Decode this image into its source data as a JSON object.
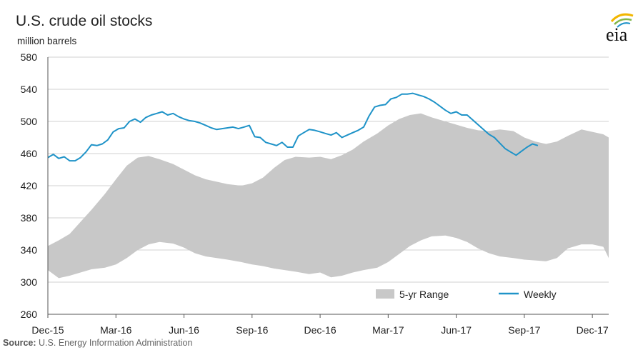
{
  "title": "U.S. crude oil stocks",
  "units": "million barrels",
  "source_label": "Source:",
  "source_text": "U.S. Energy Information Administration",
  "logo_text": "eia",
  "colors": {
    "range_fill": "#c8c8c8",
    "weekly_line": "#1f93c8",
    "grid": "#d0d0d0",
    "axis": "#555555",
    "logo_arcs": [
      "#f2b600",
      "#83b64a",
      "#1f93c8"
    ]
  },
  "chart_data": {
    "type": "area",
    "title": "U.S. crude oil stocks",
    "ylabel": "million barrels",
    "ylim": [
      260,
      580
    ],
    "yticks": [
      260,
      300,
      340,
      380,
      420,
      460,
      500,
      540,
      580
    ],
    "grid": true,
    "legend_placement": "bottom-center",
    "x_range": [
      2015.92,
      2017.98
    ],
    "xticks": [
      {
        "label": "Dec-15",
        "x": 2015.92
      },
      {
        "label": "Mar-16",
        "x": 2016.17
      },
      {
        "label": "Jun-16",
        "x": 2016.42
      },
      {
        "label": "Sep-16",
        "x": 2016.67
      },
      {
        "label": "Dec-16",
        "x": 2016.92
      },
      {
        "label": "Mar-17",
        "x": 2017.17
      },
      {
        "label": "Jun-17",
        "x": 2017.42
      },
      {
        "label": "Sep-17",
        "x": 2017.67
      },
      {
        "label": "Dec-17",
        "x": 2017.92
      }
    ],
    "series": [
      {
        "name": "5-yr Range",
        "type": "range",
        "x": [
          2015.92,
          2015.96,
          2016.0,
          2016.04,
          2016.08,
          2016.13,
          2016.17,
          2016.21,
          2016.25,
          2016.29,
          2016.33,
          2016.38,
          2016.42,
          2016.46,
          2016.5,
          2016.54,
          2016.58,
          2016.63,
          2016.67,
          2016.71,
          2016.75,
          2016.79,
          2016.83,
          2016.88,
          2016.92,
          2016.96,
          2017.0,
          2017.04,
          2017.08,
          2017.13,
          2017.17,
          2017.21,
          2017.25,
          2017.29,
          2017.33,
          2017.38,
          2017.42,
          2017.46,
          2017.5,
          2017.54,
          2017.58,
          2017.63,
          2017.67,
          2017.71,
          2017.75,
          2017.79,
          2017.83,
          2017.88,
          2017.92,
          2017.96,
          2017.98
        ],
        "low": [
          315,
          305,
          308,
          312,
          316,
          318,
          322,
          330,
          340,
          347,
          350,
          348,
          343,
          336,
          332,
          330,
          328,
          325,
          322,
          320,
          317,
          315,
          313,
          310,
          312,
          306,
          308,
          312,
          315,
          318,
          325,
          335,
          345,
          352,
          357,
          358,
          355,
          350,
          342,
          336,
          332,
          330,
          328,
          327,
          326,
          330,
          342,
          347,
          347,
          344,
          330
        ],
        "high": [
          345,
          352,
          360,
          375,
          390,
          410,
          428,
          445,
          455,
          457,
          453,
          447,
          440,
          433,
          428,
          425,
          422,
          420,
          423,
          430,
          442,
          452,
          456,
          455,
          456,
          453,
          458,
          465,
          475,
          485,
          495,
          503,
          508,
          510,
          505,
          500,
          496,
          492,
          489,
          488,
          490,
          488,
          480,
          475,
          472,
          475,
          482,
          490,
          487,
          484,
          480
        ]
      },
      {
        "name": "Weekly",
        "type": "line",
        "x": [
          2015.92,
          2015.94,
          2015.96,
          2015.98,
          2016.0,
          2016.02,
          2016.04,
          2016.06,
          2016.08,
          2016.1,
          2016.12,
          2016.14,
          2016.16,
          2016.18,
          2016.2,
          2016.22,
          2016.24,
          2016.26,
          2016.28,
          2016.3,
          2016.32,
          2016.34,
          2016.36,
          2016.38,
          2016.4,
          2016.42,
          2016.44,
          2016.46,
          2016.48,
          2016.5,
          2016.52,
          2016.54,
          2016.56,
          2016.58,
          2016.6,
          2016.62,
          2016.64,
          2016.66,
          2016.68,
          2016.7,
          2016.72,
          2016.74,
          2016.76,
          2016.78,
          2016.8,
          2016.82,
          2016.84,
          2016.86,
          2016.88,
          2016.9,
          2016.92,
          2016.94,
          2016.96,
          2016.98,
          2017.0,
          2017.02,
          2017.04,
          2017.06,
          2017.08,
          2017.1,
          2017.12,
          2017.14,
          2017.16,
          2017.18,
          2017.2,
          2017.22,
          2017.24,
          2017.26,
          2017.28,
          2017.3,
          2017.32,
          2017.34,
          2017.36,
          2017.38,
          2017.4,
          2017.42,
          2017.44,
          2017.46,
          2017.48,
          2017.5,
          2017.52,
          2017.54,
          2017.56,
          2017.58,
          2017.6,
          2017.62,
          2017.64,
          2017.66,
          2017.68,
          2017.7,
          2017.72
        ],
        "values": [
          455,
          459,
          454,
          456,
          451,
          451,
          455,
          462,
          471,
          470,
          472,
          477,
          487,
          491,
          492,
          500,
          503,
          499,
          505,
          508,
          510,
          512,
          508,
          510,
          506,
          503,
          501,
          500,
          498,
          495,
          492,
          490,
          491,
          492,
          493,
          491,
          493,
          495,
          481,
          480,
          474,
          472,
          470,
          474,
          468,
          468,
          482,
          486,
          490,
          489,
          487,
          485,
          483,
          486,
          480,
          483,
          486,
          489,
          493,
          507,
          518,
          520,
          521,
          528,
          530,
          534,
          534,
          535,
          533,
          531,
          528,
          524,
          519,
          514,
          510,
          512,
          508,
          508,
          502,
          496,
          490,
          484,
          480,
          473,
          466,
          462,
          458,
          463,
          468,
          472,
          470
        ]
      }
    ]
  }
}
